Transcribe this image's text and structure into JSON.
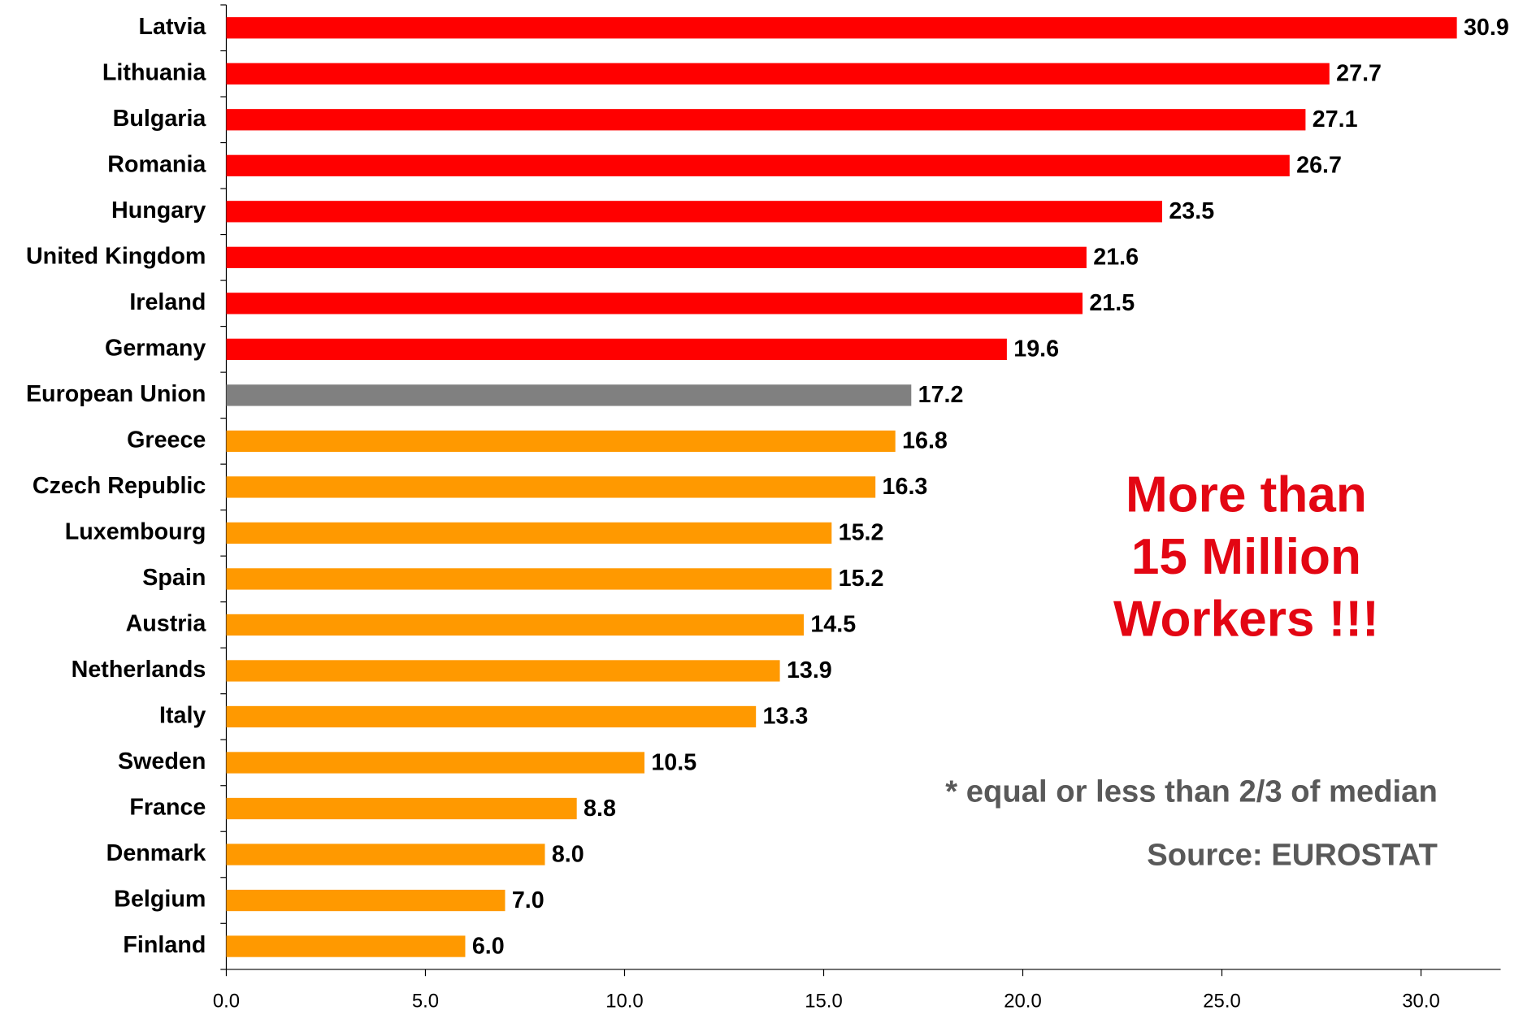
{
  "chart_data": {
    "type": "bar",
    "orientation": "horizontal",
    "categories": [
      "Latvia",
      "Lithuania",
      "Bulgaria",
      "Romania",
      "Hungary",
      "United Kingdom",
      "Ireland",
      "Germany",
      "European Union",
      "Greece",
      "Czech Republic",
      "Luxembourg",
      "Spain",
      "Austria",
      "Netherlands",
      "Italy",
      "Sweden",
      "France",
      "Denmark",
      "Belgium",
      "Finland"
    ],
    "values": [
      30.9,
      27.7,
      27.1,
      26.7,
      23.5,
      21.6,
      21.5,
      19.6,
      17.2,
      16.8,
      16.3,
      15.2,
      15.2,
      14.5,
      13.9,
      13.3,
      10.5,
      8.8,
      8.0,
      7.0,
      6.0
    ],
    "value_labels": [
      "30.9",
      "27.7",
      "27.1",
      "26.7",
      "23.5",
      "21.6",
      "21.5",
      "19.6",
      "17.2",
      "16.8",
      "16.3",
      "15.2",
      "15.2",
      "14.5",
      "13.9",
      "13.3",
      "10.5",
      "8.8",
      "8.0",
      "7.0",
      "6.0"
    ],
    "colors": [
      "#ff0000",
      "#ff0000",
      "#ff0000",
      "#ff0000",
      "#ff0000",
      "#ff0000",
      "#ff0000",
      "#ff0000",
      "#808080",
      "#ff9900",
      "#ff9900",
      "#ff9900",
      "#ff9900",
      "#ff9900",
      "#ff9900",
      "#ff9900",
      "#ff9900",
      "#ff9900",
      "#ff9900",
      "#ff9900",
      "#ff9900"
    ],
    "xlim": [
      0,
      32
    ],
    "xticks": [
      {
        "value": 0,
        "label": "0.0"
      },
      {
        "value": 5,
        "label": "5.0"
      },
      {
        "value": 10,
        "label": "10.0"
      },
      {
        "value": 15,
        "label": "15.0"
      },
      {
        "value": 20,
        "label": "20.0"
      },
      {
        "value": 25,
        "label": "25.0"
      },
      {
        "value": 30,
        "label": "30.0"
      }
    ],
    "grid": false,
    "annotations": {
      "headline": [
        "More than",
        "15 Million",
        "Workers !!!"
      ],
      "note": "* equal or less than 2/3 of median",
      "source": "Source: EUROSTAT"
    }
  }
}
